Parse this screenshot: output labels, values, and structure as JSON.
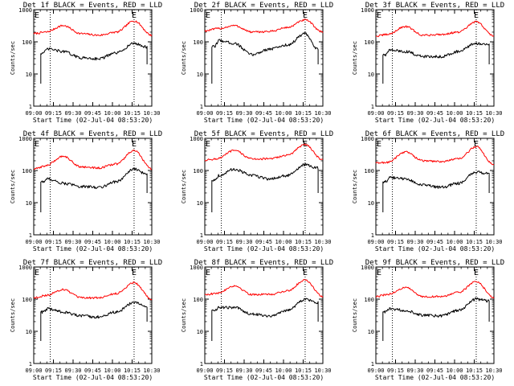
{
  "chart_data": [
    {
      "type": "line",
      "title": "Det 1f BLACK = Events, RED = LLD",
      "xlabel": "Start Time (02-Jul-04 08:53:20)",
      "ylabel": "Counts/sec",
      "yscale": "log",
      "ylim": [
        1,
        1000
      ],
      "xticks": [
        "09:00",
        "09:15",
        "09:30",
        "09:45",
        "10:00",
        "10:15",
        "10:30"
      ],
      "yticks": [
        "1",
        "10",
        "100",
        "1000"
      ],
      "annotations": [
        "E",
        "E"
      ],
      "series": [
        {
          "color": "#ff0000",
          "knots": [
            [
              0,
              180
            ],
            [
              10,
              200
            ],
            [
              25,
              320
            ],
            [
              40,
              180
            ],
            [
              55,
              160
            ],
            [
              70,
              200
            ],
            [
              85,
              450
            ],
            [
              100,
              160
            ]
          ],
          "x_start": 0,
          "x_end": 100
        },
        {
          "color": "#000000",
          "knots": [
            [
              8,
              45
            ],
            [
              12,
              60
            ],
            [
              25,
              50
            ],
            [
              40,
              32
            ],
            [
              55,
              30
            ],
            [
              70,
              45
            ],
            [
              85,
              90
            ],
            [
              95,
              70
            ]
          ],
          "x_start": 6,
          "x_end": 96
        }
      ]
    },
    {
      "type": "line",
      "title": "Det 2f BLACK = Events, RED = LLD",
      "xlabel": "Start Time (02-Jul-04 08:53:20)",
      "ylabel": "Counts/sec",
      "yscale": "log",
      "ylim": [
        1,
        1000
      ],
      "xticks": [
        "09:00",
        "09:15",
        "09:30",
        "09:45",
        "10:00",
        "10:15",
        "10:30"
      ],
      "yticks": [
        "1",
        "10",
        "100",
        "1000"
      ],
      "annotations": [
        "E",
        "E"
      ],
      "series": [
        {
          "color": "#ff0000",
          "knots": [
            [
              0,
              220
            ],
            [
              12,
              260
            ],
            [
              25,
              320
            ],
            [
              40,
              200
            ],
            [
              55,
              210
            ],
            [
              70,
              280
            ],
            [
              85,
              480
            ],
            [
              100,
              200
            ]
          ],
          "x_start": 0,
          "x_end": 100
        },
        {
          "color": "#000000",
          "knots": [
            [
              8,
              70
            ],
            [
              12,
              110
            ],
            [
              25,
              90
            ],
            [
              40,
              40
            ],
            [
              55,
              60
            ],
            [
              70,
              80
            ],
            [
              85,
              180
            ],
            [
              95,
              60
            ]
          ],
          "x_start": 6,
          "x_end": 96
        }
      ]
    },
    {
      "type": "line",
      "title": "Det 3f BLACK = Events, RED = LLD",
      "xlabel": "Start Time (02-Jul-04 08:53:20)",
      "ylabel": "Counts/sec",
      "yscale": "log",
      "ylim": [
        1,
        1000
      ],
      "xticks": [
        "09:00",
        "09:15",
        "09:30",
        "09:45",
        "10:00",
        "10:15",
        "10:30"
      ],
      "yticks": [
        "1",
        "10",
        "100",
        "1000"
      ],
      "annotations": [
        "E",
        "E"
      ],
      "series": [
        {
          "color": "#ff0000",
          "knots": [
            [
              0,
              150
            ],
            [
              10,
              170
            ],
            [
              25,
              300
            ],
            [
              40,
              160
            ],
            [
              55,
              170
            ],
            [
              70,
              200
            ],
            [
              85,
              420
            ],
            [
              100,
              150
            ]
          ],
          "x_start": 0,
          "x_end": 100
        },
        {
          "color": "#000000",
          "knots": [
            [
              8,
              40
            ],
            [
              12,
              55
            ],
            [
              25,
              50
            ],
            [
              40,
              35
            ],
            [
              55,
              35
            ],
            [
              70,
              50
            ],
            [
              85,
              90
            ],
            [
              95,
              80
            ]
          ],
          "x_start": 6,
          "x_end": 96
        }
      ]
    },
    {
      "type": "line",
      "title": "Det 4f BLACK = Events, RED = LLD",
      "xlabel": "Start Time (02-Jul-04 08:53:20)",
      "ylabel": "Counts/sec",
      "yscale": "log",
      "ylim": [
        1,
        1000
      ],
      "xticks": [
        "09:00",
        "09:15",
        "09:30",
        "09:45",
        "10:00",
        "10:15",
        "10:30"
      ],
      "yticks": [
        "1",
        "10",
        "100",
        "1000"
      ],
      "annotations": [
        "E",
        "E"
      ],
      "series": [
        {
          "color": "#ff0000",
          "knots": [
            [
              0,
              110
            ],
            [
              10,
              140
            ],
            [
              25,
              280
            ],
            [
              40,
              130
            ],
            [
              55,
              120
            ],
            [
              70,
              160
            ],
            [
              85,
              420
            ],
            [
              100,
              110
            ]
          ],
          "x_start": 0,
          "x_end": 100
        },
        {
          "color": "#000000",
          "knots": [
            [
              8,
              45
            ],
            [
              12,
              55
            ],
            [
              25,
              40
            ],
            [
              40,
              32
            ],
            [
              55,
              30
            ],
            [
              70,
              45
            ],
            [
              85,
              110
            ],
            [
              95,
              80
            ]
          ],
          "x_start": 6,
          "x_end": 96
        }
      ]
    },
    {
      "type": "line",
      "title": "Det 5f BLACK = Events, RED = LLD",
      "xlabel": "Start Time (02-Jul-04 08:53:20)",
      "ylabel": "Counts/sec",
      "yscale": "log",
      "ylim": [
        1,
        1000
      ],
      "xticks": [
        "09:00",
        "09:15",
        "09:30",
        "09:45",
        "10:00",
        "10:15",
        "10:30"
      ],
      "yticks": [
        "1",
        "10",
        "100",
        "1000"
      ],
      "annotations": [
        "E",
        "E"
      ],
      "series": [
        {
          "color": "#ff0000",
          "knots": [
            [
              0,
              210
            ],
            [
              10,
              230
            ],
            [
              25,
              420
            ],
            [
              40,
              230
            ],
            [
              55,
              230
            ],
            [
              70,
              300
            ],
            [
              85,
              650
            ],
            [
              100,
              210
            ]
          ],
          "x_start": 0,
          "x_end": 100
        },
        {
          "color": "#000000",
          "knots": [
            [
              8,
              50
            ],
            [
              12,
              70
            ],
            [
              25,
              110
            ],
            [
              40,
              70
            ],
            [
              55,
              55
            ],
            [
              70,
              70
            ],
            [
              85,
              150
            ],
            [
              95,
              120
            ]
          ],
          "x_start": 6,
          "x_end": 96
        }
      ]
    },
    {
      "type": "line",
      "title": "Det 6f BLACK = Events, RED = LLD",
      "xlabel": "Start Time (02-Jul-04 08:53:20)",
      "ylabel": "Counts/sec",
      "yscale": "log",
      "ylim": [
        1,
        1000
      ],
      "xticks": [
        "09:00",
        "09:15",
        "09:30",
        "09:45",
        "10:00",
        "10:15",
        "10:30"
      ],
      "yticks": [
        "1",
        "10",
        "100",
        "1000"
      ],
      "annotations": [
        "E",
        "E"
      ],
      "series": [
        {
          "color": "#ff0000",
          "knots": [
            [
              0,
              170
            ],
            [
              10,
              180
            ],
            [
              25,
              380
            ],
            [
              40,
              200
            ],
            [
              55,
              190
            ],
            [
              70,
              230
            ],
            [
              85,
              550
            ],
            [
              100,
              150
            ]
          ],
          "x_start": 0,
          "x_end": 100
        },
        {
          "color": "#000000",
          "knots": [
            [
              8,
              45
            ],
            [
              12,
              60
            ],
            [
              25,
              55
            ],
            [
              40,
              35
            ],
            [
              55,
              30
            ],
            [
              70,
              40
            ],
            [
              85,
              90
            ],
            [
              95,
              80
            ]
          ],
          "x_start": 6,
          "x_end": 96
        }
      ]
    },
    {
      "type": "line",
      "title": "Det 7f BLACK = Events, RED = LLD",
      "xlabel": "Start Time (02-Jul-04 08:53:20)",
      "ylabel": "Counts/sec",
      "yscale": "log",
      "ylim": [
        1,
        1000
      ],
      "xticks": [
        "09:00",
        "09:15",
        "09:30",
        "09:45",
        "10:00",
        "10:15",
        "10:30"
      ],
      "yticks": [
        "1",
        "10",
        "100",
        "1000"
      ],
      "annotations": [
        "E",
        "E"
      ],
      "series": [
        {
          "color": "#ff0000",
          "knots": [
            [
              0,
              110
            ],
            [
              10,
              130
            ],
            [
              25,
              200
            ],
            [
              40,
              110
            ],
            [
              55,
              110
            ],
            [
              70,
              150
            ],
            [
              85,
              330
            ],
            [
              100,
              100
            ]
          ],
          "x_start": 0,
          "x_end": 100
        },
        {
          "color": "#000000",
          "knots": [
            [
              8,
              40
            ],
            [
              12,
              50
            ],
            [
              25,
              40
            ],
            [
              40,
              30
            ],
            [
              55,
              28
            ],
            [
              70,
              40
            ],
            [
              85,
              80
            ],
            [
              95,
              60
            ]
          ],
          "x_start": 6,
          "x_end": 96
        }
      ]
    },
    {
      "type": "line",
      "title": "Det 8f BLACK = Events, RED = LLD",
      "xlabel": "Start Time (02-Jul-04 08:53:20)",
      "ylabel": "Counts/sec",
      "yscale": "log",
      "ylim": [
        1,
        1000
      ],
      "xticks": [
        "09:00",
        "09:15",
        "09:30",
        "09:45",
        "10:00",
        "10:15",
        "10:30"
      ],
      "yticks": [
        "1",
        "10",
        "100",
        "1000"
      ],
      "annotations": [
        "E",
        "E"
      ],
      "series": [
        {
          "color": "#ff0000",
          "knots": [
            [
              0,
              140
            ],
            [
              10,
              150
            ],
            [
              25,
              260
            ],
            [
              40,
              140
            ],
            [
              55,
              140
            ],
            [
              70,
              180
            ],
            [
              85,
              400
            ],
            [
              100,
              120
            ]
          ],
          "x_start": 0,
          "x_end": 100
        },
        {
          "color": "#000000",
          "knots": [
            [
              8,
              45
            ],
            [
              12,
              55
            ],
            [
              25,
              55
            ],
            [
              40,
              35
            ],
            [
              55,
              30
            ],
            [
              70,
              45
            ],
            [
              85,
              100
            ],
            [
              95,
              80
            ]
          ],
          "x_start": 6,
          "x_end": 96
        }
      ]
    },
    {
      "type": "line",
      "title": "Det 9f BLACK = Events, RED = LLD",
      "xlabel": "Start Time (02-Jul-04 08:53:20)",
      "ylabel": "Counts/sec",
      "yscale": "log",
      "ylim": [
        1,
        1000
      ],
      "xticks": [
        "09:00",
        "09:15",
        "09:30",
        "09:45",
        "10:00",
        "10:15",
        "10:30"
      ],
      "yticks": [
        "1",
        "10",
        "100",
        "1000"
      ],
      "annotations": [
        "E",
        "E"
      ],
      "series": [
        {
          "color": "#ff0000",
          "knots": [
            [
              0,
              120
            ],
            [
              10,
              140
            ],
            [
              25,
              230
            ],
            [
              40,
              120
            ],
            [
              55,
              120
            ],
            [
              70,
              160
            ],
            [
              85,
              360
            ],
            [
              100,
              110
            ]
          ],
          "x_start": 0,
          "x_end": 100
        },
        {
          "color": "#000000",
          "knots": [
            [
              8,
              40
            ],
            [
              12,
              50
            ],
            [
              25,
              45
            ],
            [
              40,
              32
            ],
            [
              55,
              30
            ],
            [
              70,
              45
            ],
            [
              85,
              100
            ],
            [
              95,
              90
            ]
          ],
          "x_start": 6,
          "x_end": 96
        }
      ]
    }
  ]
}
